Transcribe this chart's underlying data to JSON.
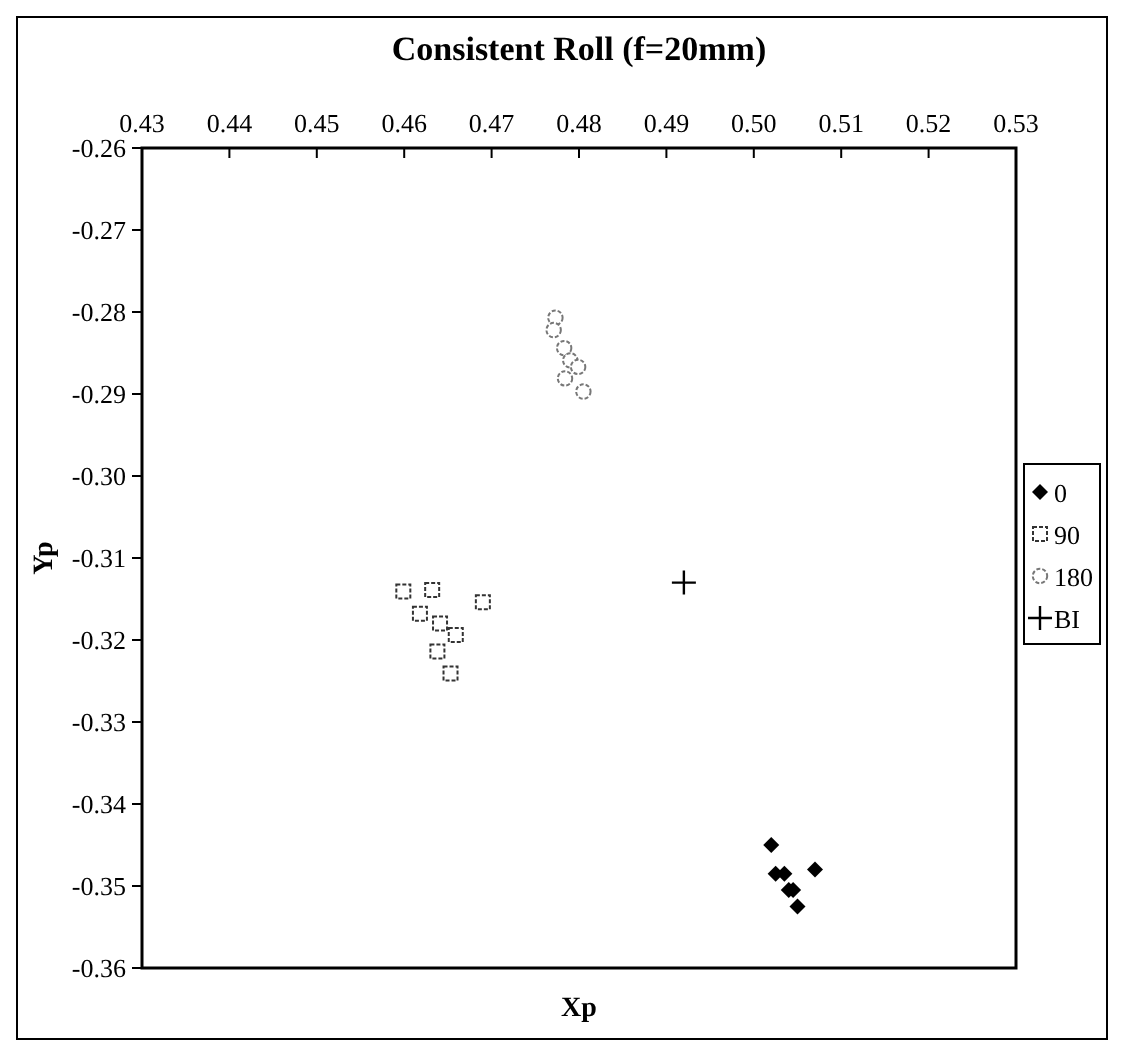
{
  "chart_data": {
    "type": "scatter",
    "title": "Consistent Roll (f=20mm)",
    "xlabel": "Xp",
    "ylabel": "Yp",
    "xlim": [
      0.43,
      0.53
    ],
    "xticks": [
      0.43,
      0.44,
      0.45,
      0.46,
      0.47,
      0.48,
      0.49,
      {
        "value": 0.5,
        "label": "0.50"
      },
      0.51,
      0.52,
      0.53
    ],
    "ylim": [
      -0.36,
      -0.26
    ],
    "yticks": [
      -0.36,
      -0.35,
      -0.34,
      -0.33,
      -0.32,
      -0.31,
      {
        "value": -0.3,
        "label": "-0.30"
      },
      -0.29,
      -0.28,
      -0.27,
      -0.26
    ],
    "grid": false,
    "legend": "right",
    "series": [
      {
        "name": "0",
        "color": "#000000",
        "marker": "diamond",
        "x": [
          0.502,
          0.5025,
          0.5035,
          0.504,
          0.5045,
          0.505,
          0.507
        ],
        "values": [
          -0.345,
          -0.3485,
          -0.3485,
          -0.3505,
          -0.3505,
          -0.3525,
          -0.348
        ]
      },
      {
        "name": "90",
        "color": "#333333",
        "marker": "square",
        "x": [
          0.4599,
          0.4632,
          0.4618,
          0.4641,
          0.469,
          0.4659,
          0.4638,
          0.4653
        ],
        "values": [
          -0.3141,
          -0.3139,
          -0.3168,
          -0.318,
          -0.3154,
          -0.3194,
          -0.3214,
          -0.3241
        ]
      },
      {
        "name": "180",
        "color": "#777777",
        "marker": "circle",
        "x": [
          0.4773,
          0.4771,
          0.4783,
          0.479,
          0.4799,
          0.4784,
          0.4805
        ],
        "values": [
          -0.2807,
          -0.2822,
          -0.2844,
          -0.2859,
          -0.2867,
          -0.2881,
          -0.2897
        ]
      },
      {
        "name": "BI",
        "color": "#000000",
        "marker": "cross",
        "x": [
          0.492
        ],
        "values": [
          -0.313
        ]
      }
    ]
  }
}
